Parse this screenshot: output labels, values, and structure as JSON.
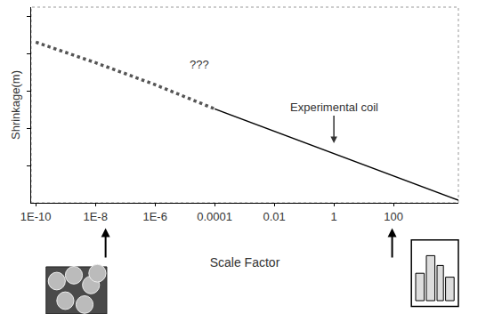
{
  "chart_data": {
    "type": "line",
    "x_label": "Scale Factor",
    "y_label": "Shrinkage(m)",
    "series": [
      {
        "x": [
          1e-10,
          1e-08,
          1e-06,
          0.0001
        ],
        "values": [
          4.31,
          3.76,
          3.17,
          2.52
        ],
        "line_style": "dot",
        "color": "#555555"
      },
      {
        "x": [
          0.0001,
          1,
          15000
        ],
        "values": [
          2.52,
          1.33,
          0.07
        ],
        "line_style": "solid",
        "color": "#000000"
      }
    ],
    "xlim": [
      7e-11,
      15000
    ],
    "ylim": [
      0,
      5.25
    ],
    "xticks": [
      {
        "value": 1e-10,
        "label": "1E-10"
      },
      {
        "value": 1e-08,
        "label": "1E-8"
      },
      {
        "value": 1e-06,
        "label": "1E-6"
      },
      0.0001,
      0.01,
      1,
      100
    ],
    "yticks": [
      1,
      2,
      3,
      4,
      5
    ],
    "log": "x",
    "grid": false,
    "tick_labels": "x",
    "annotations": [
      {
        "text": "???",
        "x": 3e-05,
        "y": 3.7
      },
      {
        "text": "Experimental coil",
        "x": 1,
        "y": 1.6,
        "arrow": true
      }
    ]
  }
}
